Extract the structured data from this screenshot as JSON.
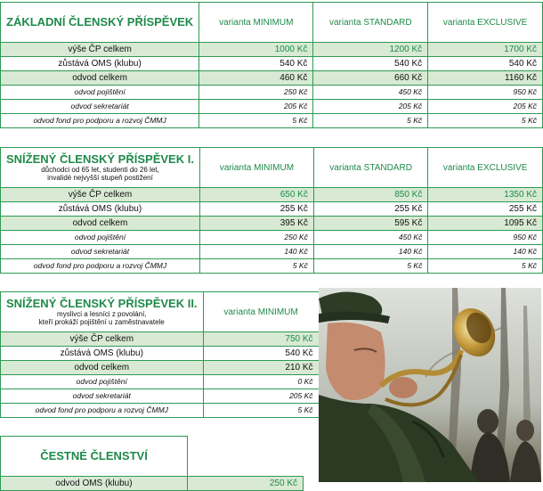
{
  "section1": {
    "title": "ZÁKLADNÍ ČLENSKÝ PŘÍSPĚVEK",
    "columns": [
      "varianta MINIMUM",
      "varianta STANDARD",
      "varianta EXCLUSIVE"
    ],
    "rows": [
      {
        "label": "výše ČP celkem",
        "values": [
          "1000 Kč",
          "1200 Kč",
          "1700 Kč"
        ]
      },
      {
        "label": "zůstává OMS (klubu)",
        "values": [
          "540 Kč",
          "540 Kč",
          "540 Kč"
        ]
      },
      {
        "label": "odvod celkem",
        "values": [
          "460 Kč",
          "660 Kč",
          "1160 Kč"
        ]
      },
      {
        "label": "odvod pojištění",
        "values": [
          "250 Kč",
          "450 Kč",
          "950 Kč"
        ]
      },
      {
        "label": "odvod sekretariát",
        "values": [
          "205 Kč",
          "205 Kč",
          "205 Kč"
        ]
      },
      {
        "label": "odvod fond pro podporu a rozvoj ČMMJ",
        "values": [
          "5 Kč",
          "5 Kč",
          "5 Kč"
        ]
      }
    ]
  },
  "section2": {
    "title": "SNÍŽENÝ ČLENSKÝ PŘÍSPĚVEK I.",
    "subtitle_1": "důchodci od 65 let, studenti do 26 let,",
    "subtitle_2": "invalidé nejvyšší stupeň postižení",
    "columns": [
      "varianta MINIMUM",
      "varianta STANDARD",
      "varianta EXCLUSIVE"
    ],
    "rows": [
      {
        "label": "výše ČP celkem",
        "values": [
          "650 Kč",
          "850 Kč",
          "1350 Kč"
        ]
      },
      {
        "label": "zůstává OMS (klubu)",
        "values": [
          "255 Kč",
          "255 Kč",
          "255 Kč"
        ]
      },
      {
        "label": "odvod celkem",
        "values": [
          "395 Kč",
          "595 Kč",
          "1095 Kč"
        ]
      },
      {
        "label": "odvod pojištění",
        "values": [
          "250 Kč",
          "450 Kč",
          "950 Kč"
        ]
      },
      {
        "label": "odvod sekretariát",
        "values": [
          "140 Kč",
          "140 Kč",
          "140 Kč"
        ]
      },
      {
        "label": "odvod fond pro podporu a rozvoj ČMMJ",
        "values": [
          "5 Kč",
          "5 Kč",
          "5 Kč"
        ]
      }
    ]
  },
  "section3": {
    "title": "SNÍŽENÝ ČLENSKÝ PŘÍSPĚVEK II.",
    "subtitle_1": "myslivci a lesníci z povolání,",
    "subtitle_2": "kteří prokáží pojištění u zaměstnavatele",
    "columns": [
      "varianta MINIMUM"
    ],
    "rows": [
      {
        "label": "výše ČP celkem",
        "values": [
          "750 Kč"
        ]
      },
      {
        "label": "zůstává OMS (klubu)",
        "values": [
          "540 Kč"
        ]
      },
      {
        "label": "odvod celkem",
        "values": [
          "210 Kč"
        ]
      },
      {
        "label": "odvod pojištění",
        "values": [
          "0 Kč"
        ]
      },
      {
        "label": "odvod sekretariát",
        "values": [
          "205 Kč"
        ]
      },
      {
        "label": "odvod fond pro podporu a rozvoj ČMMJ",
        "values": [
          "5 Kč"
        ]
      }
    ]
  },
  "section4": {
    "title": "ČESTNÉ ČLENSTVÍ",
    "rows": [
      {
        "label": "odvod OMS (klubu)",
        "values": [
          "250 Kč"
        ]
      }
    ]
  },
  "colors": {
    "accent": "#1f8a4a",
    "border": "#2e9a55",
    "highlight": "#d8ead3"
  },
  "photo_icon": "hunter-horn-photo"
}
